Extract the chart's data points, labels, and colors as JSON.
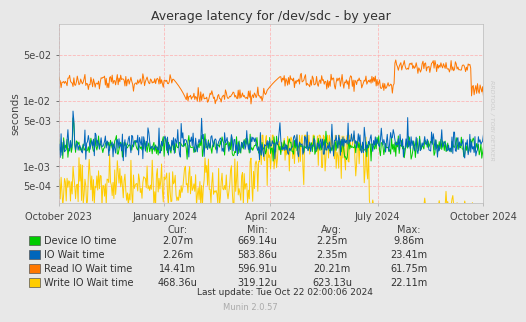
{
  "title": "Average latency for /dev/sdc - by year",
  "ylabel": "seconds",
  "background_color": "#e8e8e8",
  "plot_bg_color": "#f0f0f0",
  "grid_color": "#ffaaaa",
  "yticks": [
    0.0005,
    0.001,
    0.005,
    0.01,
    0.05
  ],
  "ytick_labels": [
    "5e-04",
    "1e-03",
    "5e-03",
    "1e-02",
    "5e-02"
  ],
  "series_colors": [
    "#00cc00",
    "#0066bb",
    "#ff7700",
    "#ffcc00"
  ],
  "legend_items": [
    {
      "label": "Device IO time",
      "color": "#00cc00",
      "cur": "2.07m",
      "min": "669.14u",
      "avg": "2.25m",
      "max": "9.86m"
    },
    {
      "label": "IO Wait time",
      "color": "#0066bb",
      "cur": "2.26m",
      "min": "583.86u",
      "avg": "2.35m",
      "max": "23.41m"
    },
    {
      "label": "Read IO Wait time",
      "color": "#ff7700",
      "cur": "14.41m",
      "min": "596.91u",
      "avg": "20.21m",
      "max": "61.75m"
    },
    {
      "label": "Write IO Wait time",
      "color": "#ffcc00",
      "cur": "468.36u",
      "min": "319.12u",
      "avg": "623.13u",
      "max": "22.11m"
    }
  ],
  "last_update": "Last update: Tue Oct 22 02:00:06 2024",
  "munin_version": "Munin 2.0.57",
  "watermark": "RRDTOOL / TOBI OETIKER",
  "xtick_labels": [
    "October 2023",
    "January 2024",
    "April 2024",
    "July 2024",
    "October 2024"
  ],
  "xtick_positions": [
    0,
    91,
    182,
    274,
    365
  ]
}
